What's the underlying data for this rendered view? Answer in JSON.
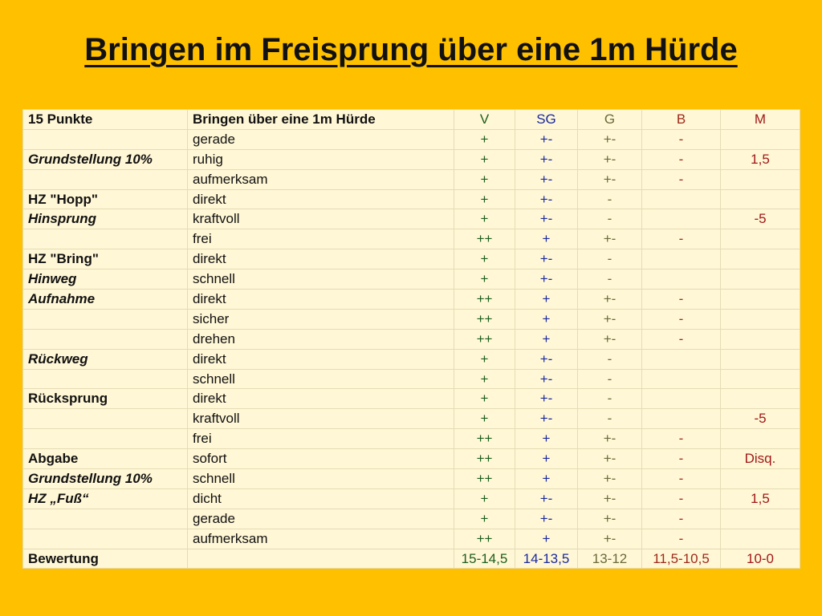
{
  "title": "Bringen im Freisprung über eine 1m Hürde",
  "colors": {
    "background": "#FFC000",
    "table_bg": "#FFF7D6",
    "V": "#1E5E1E",
    "SG": "#1A2A9E",
    "G": "#6B6B3A",
    "B": "#9E2A1A",
    "M": "#A01818"
  },
  "header": {
    "points": "15 Punkte",
    "exercise": "Bringen über eine 1m Hürde",
    "V": "V",
    "SG": "SG",
    "G": "G",
    "B": "B",
    "M": "M"
  },
  "rows": [
    {
      "label": "",
      "item": "gerade",
      "V": "+",
      "SG": "+-",
      "G": "+-",
      "B": "-",
      "M": ""
    },
    {
      "label": "Grundstellung 10%",
      "item": "ruhig",
      "V": "+",
      "SG": "+-",
      "G": "+-",
      "B": "-",
      "M": "1,5"
    },
    {
      "label": "",
      "item": "aufmerksam",
      "V": "+",
      "SG": "+-",
      "G": "+-",
      "B": "-",
      "M": ""
    },
    {
      "label": "HZ \"Hopp\"",
      "item": "direkt",
      "V": "+",
      "SG": "+-",
      "G": "-",
      "B": "",
      "M": ""
    },
    {
      "label": "Hinsprung",
      "item": "kraftvoll",
      "V": "+",
      "SG": "+-",
      "G": "-",
      "B": "",
      "M": "-5"
    },
    {
      "label": "",
      "item": "frei",
      "V": "++",
      "SG": "+",
      "G": "+-",
      "B": "-",
      "M": ""
    },
    {
      "label": "HZ \"Bring\"",
      "item": "direkt",
      "V": "+",
      "SG": "+-",
      "G": "-",
      "B": "",
      "M": ""
    },
    {
      "label": "Hinweg",
      "item": "schnell",
      "V": "+",
      "SG": "+-",
      "G": "-",
      "B": "",
      "M": ""
    },
    {
      "label": "Aufnahme",
      "item": "direkt",
      "V": "++",
      "SG": "+",
      "G": "+-",
      "B": "-",
      "M": ""
    },
    {
      "label": "",
      "item": "sicher",
      "V": "++",
      "SG": "+",
      "G": "+-",
      "B": "-",
      "M": ""
    },
    {
      "label": "",
      "item": "drehen",
      "V": "++",
      "SG": "+",
      "G": "+-",
      "B": "-",
      "M": ""
    },
    {
      "label": "Rückweg",
      "item": "direkt",
      "V": "+",
      "SG": "+-",
      "G": "-",
      "B": "",
      "M": ""
    },
    {
      "label": "",
      "item": "schnell",
      "V": "+",
      "SG": "+-",
      "G": "-",
      "B": "",
      "M": ""
    },
    {
      "label": "Rücksprung",
      "item": "direkt",
      "V": "+",
      "SG": "+-",
      "G": "-",
      "B": "",
      "M": ""
    },
    {
      "label": "",
      "item": "kraftvoll",
      "V": "+",
      "SG": "+-",
      "G": "-",
      "B": "",
      "M": "-5"
    },
    {
      "label": "",
      "item": "frei",
      "V": "++",
      "SG": "+",
      "G": "+-",
      "B": "-",
      "M": ""
    },
    {
      "label": "Abgabe",
      "item": "sofort",
      "V": "++",
      "SG": "+",
      "G": "+-",
      "B": "-",
      "M": "Disq."
    },
    {
      "label": "Grundstellung 10%",
      "item": "schnell",
      "V": "++",
      "SG": "+",
      "G": "+-",
      "B": "-",
      "M": ""
    },
    {
      "label": "HZ „Fuß“",
      "item": "dicht",
      "V": "+",
      "SG": "+-",
      "G": "+-",
      "B": "-",
      "M": "1,5"
    },
    {
      "label": "",
      "item": "gerade",
      "V": "+",
      "SG": "+-",
      "G": "+-",
      "B": "-",
      "M": ""
    },
    {
      "label": "",
      "item": "aufmerksam",
      "V": "++",
      "SG": "+",
      "G": "+-",
      "B": "-",
      "M": ""
    }
  ],
  "rating": {
    "label": "Bewertung",
    "V": "15-14,5",
    "SG": "14-13,5",
    "G": "13-12",
    "B": "11,5-10,5",
    "M": "10-0"
  }
}
